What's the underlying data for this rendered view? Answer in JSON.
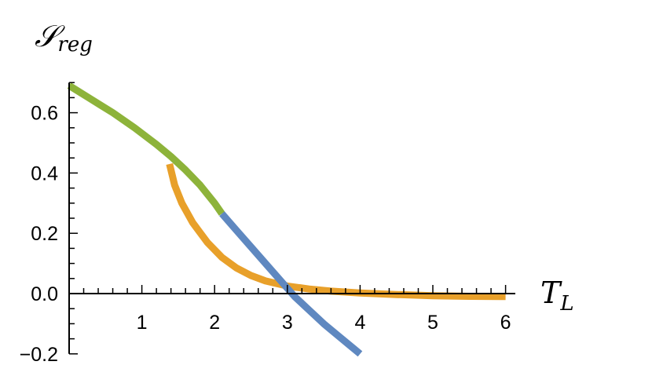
{
  "chart_data": {
    "type": "line",
    "ylabel": {
      "main": "𝒮",
      "sub": "reg"
    },
    "xlabel": {
      "main": "T",
      "sub": "L"
    },
    "xlim": [
      0,
      6
    ],
    "ylim": [
      -0.2,
      0.7
    ],
    "xticks": [
      {
        "value": 1,
        "label": "1"
      },
      {
        "value": 2,
        "label": "2"
      },
      {
        "value": 3,
        "label": "3"
      },
      {
        "value": 4,
        "label": "4"
      },
      {
        "value": 5,
        "label": "5"
      },
      {
        "value": 6,
        "label": "6"
      }
    ],
    "yticks": [
      {
        "value": -0.2,
        "label": "−0.2"
      },
      {
        "value": 0.0,
        "label": "0.0"
      },
      {
        "value": 0.2,
        "label": "0.2"
      },
      {
        "value": 0.4,
        "label": "0.4"
      },
      {
        "value": 0.6,
        "label": "0.6"
      }
    ],
    "series": [
      {
        "color": "#8db33a",
        "x": [
          0.0,
          0.3,
          0.6,
          0.9,
          1.2,
          1.4,
          1.6,
          1.8,
          2.0,
          2.1
        ],
        "y": [
          0.69,
          0.645,
          0.6,
          0.55,
          0.495,
          0.455,
          0.41,
          0.36,
          0.3,
          0.265
        ]
      },
      {
        "color": "#e8a02a",
        "x": [
          1.38,
          1.45,
          1.55,
          1.7,
          1.9,
          2.1,
          2.3,
          2.5,
          2.7,
          3.0,
          3.3,
          3.6,
          4.0,
          4.5,
          5.0,
          5.5,
          6.0
        ],
        "y": [
          0.43,
          0.36,
          0.3,
          0.235,
          0.17,
          0.12,
          0.085,
          0.06,
          0.042,
          0.025,
          0.015,
          0.008,
          0.002,
          -0.003,
          -0.007,
          -0.009,
          -0.01
        ]
      },
      {
        "color": "#5f88c0",
        "x": [
          2.1,
          2.3,
          2.5,
          2.7,
          2.9,
          3.1,
          3.3,
          3.5,
          3.7,
          3.9,
          4.0
        ],
        "y": [
          0.265,
          0.21,
          0.155,
          0.1,
          0.045,
          -0.01,
          -0.055,
          -0.1,
          -0.14,
          -0.18,
          -0.2
        ]
      }
    ]
  }
}
